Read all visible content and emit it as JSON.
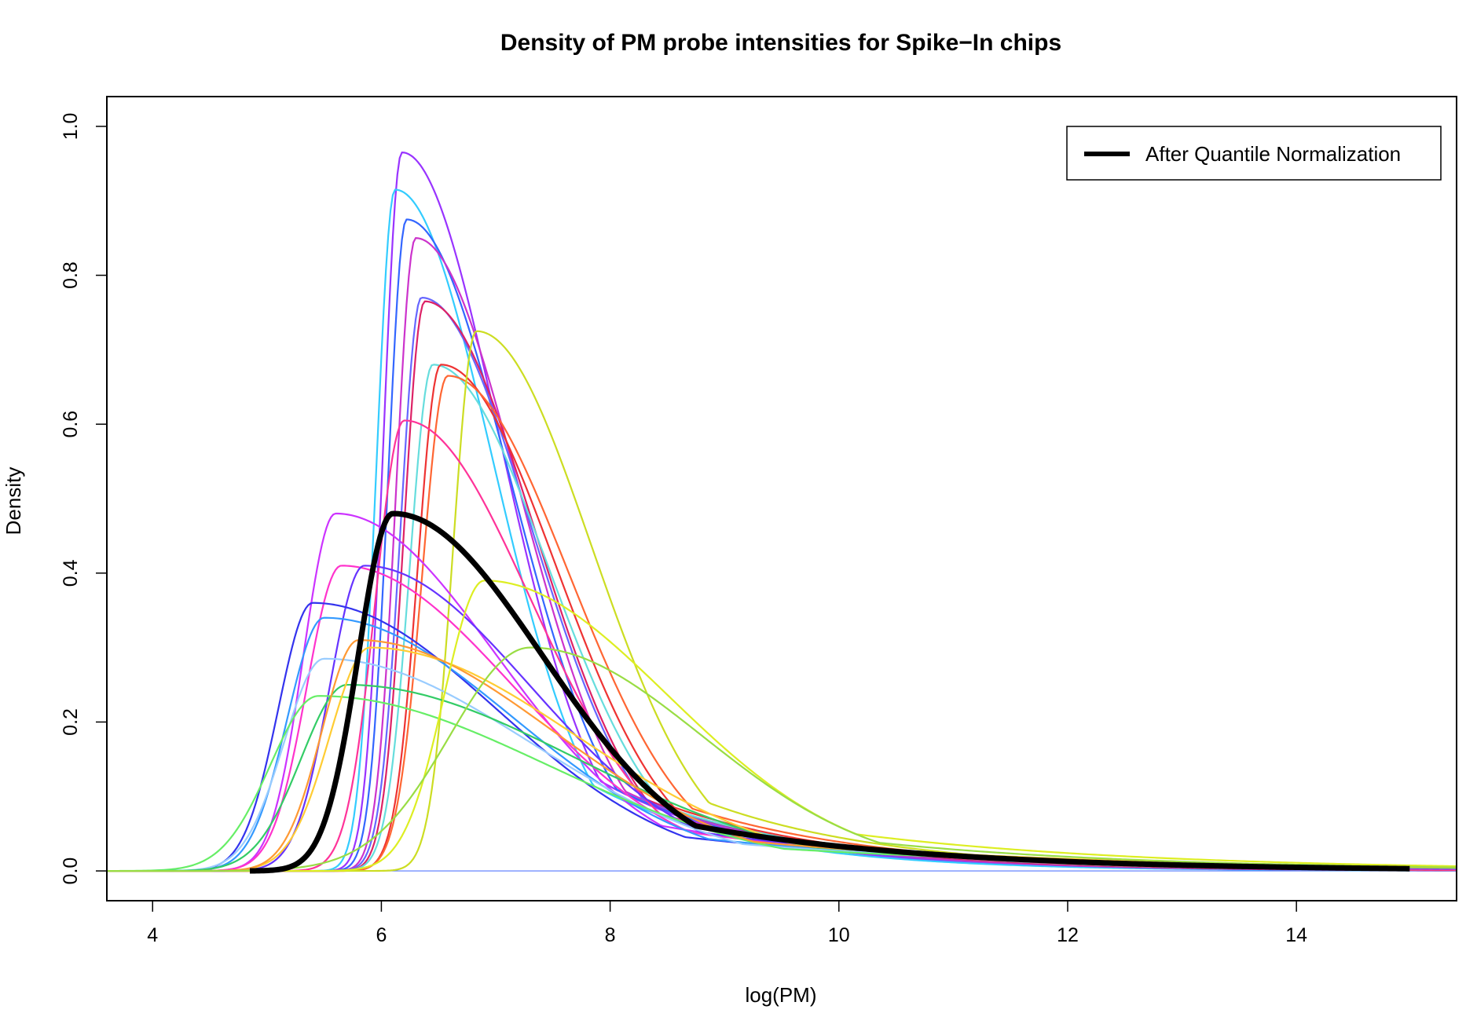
{
  "chart_data": {
    "type": "line",
    "title": "Density of PM probe intensities for Spike−In chips",
    "xlabel": "log(PM)",
    "ylabel": "Density",
    "xlim": [
      3.6,
      15.4
    ],
    "ylim": [
      -0.04,
      1.04
    ],
    "x_ticks": [
      4,
      6,
      8,
      10,
      12,
      14
    ],
    "x_tick_labels": [
      "4",
      "6",
      "8",
      "10",
      "12",
      "14"
    ],
    "y_ticks": [
      0.0,
      0.2,
      0.4,
      0.6,
      0.8,
      1.0
    ],
    "y_tick_labels": [
      "0.0",
      "0.2",
      "0.4",
      "0.6",
      "0.8",
      "1.0"
    ],
    "grid": false,
    "legend": {
      "position": "top-right",
      "entries": [
        {
          "label": "After Quantile Normalization",
          "color": "#000000"
        }
      ]
    },
    "series": [
      {
        "color": "#9933ff",
        "mode": 6.18,
        "peak": 0.965,
        "sdL": 0.16,
        "sdR": 0.85
      },
      {
        "color": "#33ccff",
        "mode": 6.12,
        "peak": 0.915,
        "sdL": 0.16,
        "sdR": 0.85
      },
      {
        "color": "#3366ff",
        "mode": 6.22,
        "peak": 0.875,
        "sdL": 0.16,
        "sdR": 0.9
      },
      {
        "color": "#cc33cc",
        "mode": 6.3,
        "peak": 0.85,
        "sdL": 0.17,
        "sdR": 0.9
      },
      {
        "color": "#6666ff",
        "mode": 6.35,
        "peak": 0.77,
        "sdL": 0.18,
        "sdR": 0.95
      },
      {
        "color": "#dd2266",
        "mode": 6.38,
        "peak": 0.765,
        "sdL": 0.18,
        "sdR": 0.95
      },
      {
        "color": "#66dddd",
        "mode": 6.45,
        "peak": 0.68,
        "sdL": 0.2,
        "sdR": 1.0
      },
      {
        "color": "#ee3333",
        "mode": 6.52,
        "peak": 0.68,
        "sdL": 0.2,
        "sdR": 1.0
      },
      {
        "color": "#ff6633",
        "mode": 6.58,
        "peak": 0.665,
        "sdL": 0.22,
        "sdR": 1.05
      },
      {
        "color": "#ccdd22",
        "mode": 6.83,
        "peak": 0.725,
        "sdL": 0.2,
        "sdR": 1.0
      },
      {
        "color": "#ff3399",
        "mode": 6.2,
        "peak": 0.605,
        "sdL": 0.25,
        "sdR": 1.1
      },
      {
        "color": "#cc33ff",
        "mode": 5.6,
        "peak": 0.48,
        "sdL": 0.28,
        "sdR": 1.4
      },
      {
        "color": "#ff33cc",
        "mode": 5.65,
        "peak": 0.41,
        "sdL": 0.3,
        "sdR": 1.5
      },
      {
        "color": "#6633ff",
        "mode": 5.85,
        "peak": 0.41,
        "sdL": 0.3,
        "sdR": 1.45
      },
      {
        "color": "#3333ee",
        "mode": 5.4,
        "peak": 0.36,
        "sdL": 0.3,
        "sdR": 1.6
      },
      {
        "color": "#3399ff",
        "mode": 5.5,
        "peak": 0.34,
        "sdL": 0.32,
        "sdR": 1.65
      },
      {
        "color": "#99ccff",
        "mode": 5.5,
        "peak": 0.285,
        "sdL": 0.35,
        "sdR": 1.8
      },
      {
        "color": "#66ee66",
        "mode": 5.45,
        "peak": 0.235,
        "sdL": 0.42,
        "sdR": 2.0
      },
      {
        "color": "#33cc66",
        "mode": 5.7,
        "peak": 0.25,
        "sdL": 0.4,
        "sdR": 2.0
      },
      {
        "color": "#ffcc33",
        "mode": 5.9,
        "peak": 0.3,
        "sdL": 0.35,
        "sdR": 1.8
      },
      {
        "color": "#ff9933",
        "mode": 5.8,
        "peak": 0.31,
        "sdL": 0.32,
        "sdR": 1.7
      },
      {
        "color": "#ddee22",
        "mode": 6.9,
        "peak": 0.39,
        "sdL": 0.35,
        "sdR": 1.6
      },
      {
        "color": "#99dd44",
        "mode": 7.3,
        "peak": 0.3,
        "sdL": 0.7,
        "sdR": 1.5
      },
      {
        "color": "#000000",
        "mode": 6.1,
        "peak": 0.48,
        "sdL": 0.3,
        "sdR": 1.3,
        "bold": true,
        "name": "After Quantile Normalization"
      }
    ]
  }
}
